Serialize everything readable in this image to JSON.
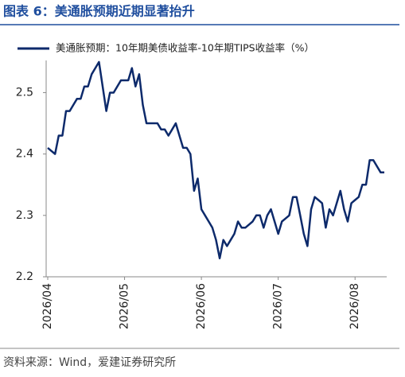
{
  "chart_data": {
    "type": "line",
    "title": "图表 6：美通胀预期近期显著抬升",
    "source": "资料来源：Wind，爱建证券研究所",
    "categories": [
      "2026/04",
      null,
      null,
      null,
      null,
      null,
      null,
      null,
      null,
      null,
      null,
      null,
      null,
      null,
      null,
      null,
      null,
      null,
      null,
      null,
      null,
      "2026/05",
      null,
      null,
      null,
      null,
      null,
      null,
      null,
      null,
      null,
      null,
      null,
      null,
      null,
      null,
      null,
      null,
      null,
      null,
      null,
      null,
      "2026/06",
      null,
      null,
      null,
      null,
      null,
      null,
      null,
      null,
      null,
      null,
      null,
      null,
      null,
      null,
      null,
      null,
      null,
      null,
      null,
      null,
      "2026/07",
      null,
      null,
      null,
      null,
      null,
      null,
      null,
      null,
      null,
      null,
      null,
      null,
      null,
      null,
      null,
      null,
      null,
      null,
      null,
      null,
      "2026/08",
      null,
      null,
      null,
      null,
      null,
      null,
      null,
      null
    ],
    "series": [
      {
        "name": "美通胀预期：10年期美债收益率-10年期TIPS收益率（%）",
        "color": "#0d2a6b",
        "values": [
          2.41,
          2.405,
          2.4,
          2.43,
          2.43,
          2.47,
          2.47,
          2.48,
          2.49,
          2.49,
          2.51,
          2.51,
          2.53,
          2.54,
          2.55,
          2.51,
          2.47,
          2.5,
          2.5,
          2.51,
          2.52,
          2.52,
          2.52,
          2.54,
          2.51,
          2.53,
          2.48,
          2.45,
          2.45,
          2.45,
          2.45,
          2.44,
          2.44,
          2.43,
          2.44,
          2.45,
          2.43,
          2.41,
          2.41,
          2.4,
          2.34,
          2.36,
          2.31,
          2.3,
          2.29,
          2.28,
          2.26,
          2.23,
          2.26,
          2.25,
          2.26,
          2.27,
          2.29,
          2.28,
          2.28,
          2.285,
          2.29,
          2.3,
          2.3,
          2.28,
          2.3,
          2.31,
          2.29,
          2.27,
          2.29,
          2.295,
          2.3,
          2.33,
          2.33,
          2.3,
          2.27,
          2.25,
          2.31,
          2.33,
          2.325,
          2.32,
          2.28,
          2.31,
          2.3,
          2.32,
          2.34,
          2.31,
          2.29,
          2.32,
          2.325,
          2.33,
          2.35,
          2.35,
          2.39,
          2.39,
          2.38,
          2.37,
          2.37
        ]
      }
    ],
    "ylim": [
      2.2,
      2.555
    ],
    "yticks": [
      2.2,
      2.3,
      2.4,
      2.5
    ]
  }
}
